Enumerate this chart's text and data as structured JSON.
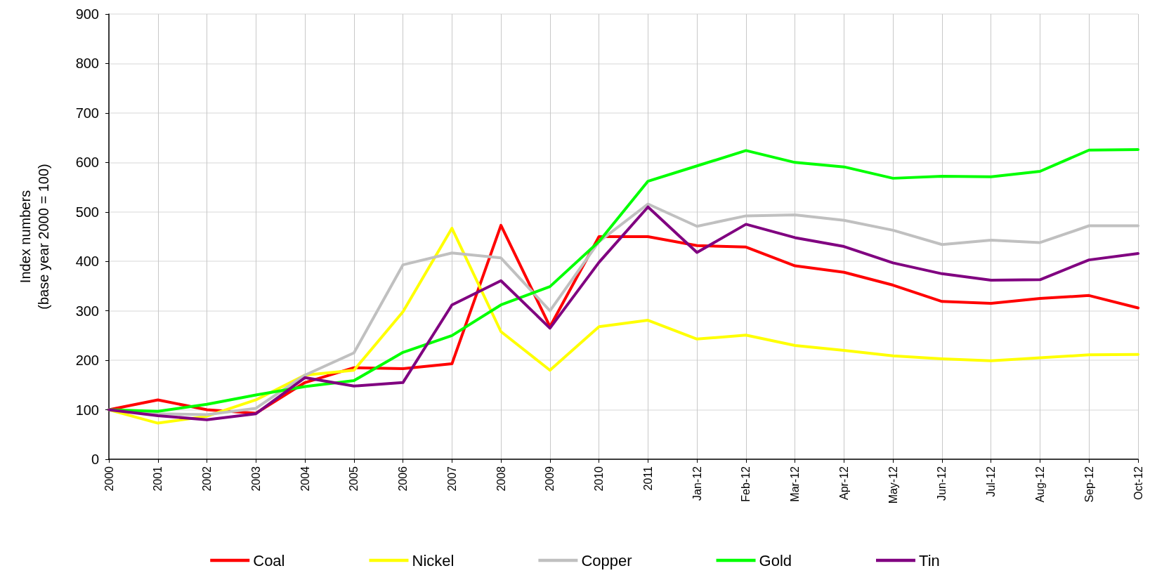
{
  "chart_data": {
    "type": "line",
    "ylabel": "Index numbers\n(base year 2000 = 100)",
    "categories": [
      "2000",
      "2001",
      "2002",
      "2003",
      "2004",
      "2005",
      "2006",
      "2007",
      "2008",
      "2009",
      "2010",
      "2011",
      "Jan-12",
      "Feb-12",
      "Mar-12",
      "Apr-12",
      "May-12",
      "Jun-12",
      "Jul-12",
      "Aug-12",
      "Sep-12",
      "Oct-12"
    ],
    "series": [
      {
        "name": "Coal",
        "color": "#ff0000",
        "values": [
          100,
          120,
          100,
          93,
          155,
          185,
          183,
          193,
          473,
          268,
          450,
          450,
          432,
          429,
          391,
          378,
          352,
          319,
          315,
          325,
          331,
          306
        ]
      },
      {
        "name": "Nickel",
        "color": "#ffff00",
        "values": [
          100,
          73,
          87,
          120,
          170,
          180,
          298,
          467,
          258,
          180,
          268,
          281,
          243,
          251,
          230,
          220,
          209,
          203,
          199,
          205,
          211,
          212
        ]
      },
      {
        "name": "Copper",
        "color": "#c0c0c0",
        "values": [
          100,
          92,
          90,
          103,
          170,
          215,
          393,
          417,
          407,
          300,
          440,
          516,
          471,
          492,
          494,
          483,
          463,
          434,
          443,
          438,
          472,
          472
        ]
      },
      {
        "name": "Gold",
        "color": "#00ff00",
        "values": [
          100,
          97,
          111,
          130,
          147,
          159,
          216,
          250,
          312,
          349,
          440,
          562,
          593,
          624,
          600,
          591,
          568,
          572,
          571,
          582,
          625,
          626
        ]
      },
      {
        "name": "Tin",
        "color": "#800080",
        "values": [
          100,
          88,
          80,
          92,
          165,
          148,
          155,
          312,
          361,
          265,
          398,
          510,
          418,
          475,
          448,
          430,
          397,
          375,
          362,
          363,
          403,
          416
        ]
      }
    ],
    "ylim": [
      0,
      900
    ],
    "yticks": [
      0,
      100,
      200,
      300,
      400,
      500,
      600,
      700,
      800,
      900
    ],
    "grid": true,
    "legend": "bottom",
    "marker": "none",
    "line_style": "solid"
  }
}
